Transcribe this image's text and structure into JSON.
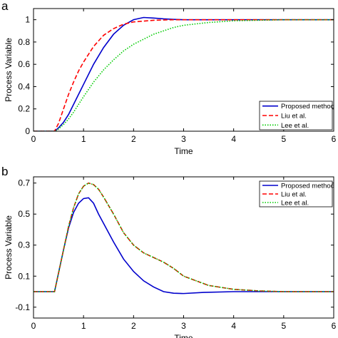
{
  "chart_data": [
    {
      "panel_label": "a",
      "type": "line",
      "xlabel": "Time",
      "ylabel": "Process Variable",
      "xlim": [
        0,
        6
      ],
      "ylim": [
        0,
        1.1
      ],
      "xticks": [
        0,
        1,
        2,
        3,
        4,
        5,
        6
      ],
      "yticks": [
        0,
        0.2,
        0.4,
        0.6,
        0.8,
        1
      ],
      "x_tick_labels": [
        "0",
        "1",
        "2",
        "3",
        "4",
        "5",
        "6"
      ],
      "y_tick_labels": [
        "0",
        "0.2",
        "0.4",
        "0.6",
        "0.8",
        "1"
      ],
      "grid": false,
      "legend_position": "bottom-right",
      "series": [
        {
          "name": "Proposed method",
          "color": "#0000cc",
          "style": "solid",
          "x": [
            0,
            0.42,
            0.5,
            0.6,
            0.7,
            0.8,
            0.9,
            1.0,
            1.2,
            1.4,
            1.6,
            1.8,
            2.0,
            2.2,
            2.4,
            2.6,
            2.8,
            3.0,
            3.5,
            4.0,
            5.0,
            6.0
          ],
          "y": [
            0,
            0,
            0.03,
            0.08,
            0.15,
            0.24,
            0.33,
            0.42,
            0.6,
            0.75,
            0.87,
            0.95,
            1.0,
            1.02,
            1.015,
            1.008,
            1.003,
            1.0,
            1.0,
            1.0,
            1.0,
            1.0
          ]
        },
        {
          "name": "Liu et al.",
          "color": "#ff0000",
          "style": "dashed",
          "x": [
            0,
            0.42,
            0.5,
            0.6,
            0.7,
            0.8,
            0.9,
            1.0,
            1.2,
            1.4,
            1.6,
            1.8,
            2.0,
            2.4,
            2.8,
            3.0,
            4.0,
            5.0,
            6.0
          ],
          "y": [
            0,
            0,
            0.07,
            0.2,
            0.33,
            0.44,
            0.54,
            0.62,
            0.76,
            0.86,
            0.92,
            0.96,
            0.98,
            0.995,
            1.0,
            1.0,
            1.0,
            1.0,
            1.0
          ]
        },
        {
          "name": "Lee et al.",
          "color": "#00cc00",
          "style": "dotted",
          "x": [
            0,
            0.45,
            0.5,
            0.6,
            0.7,
            0.8,
            0.9,
            1.0,
            1.2,
            1.4,
            1.6,
            1.8,
            2.0,
            2.4,
            2.8,
            3.0,
            3.5,
            4.0,
            5.0,
            6.0
          ],
          "y": [
            0,
            0,
            0.02,
            0.06,
            0.11,
            0.17,
            0.24,
            0.31,
            0.44,
            0.55,
            0.64,
            0.72,
            0.78,
            0.87,
            0.93,
            0.95,
            0.975,
            0.99,
            1.0,
            1.0
          ]
        }
      ]
    },
    {
      "panel_label": "b",
      "type": "line",
      "xlabel": "Time",
      "ylabel": "Process Variable",
      "xlim": [
        0,
        6
      ],
      "ylim": [
        -0.17,
        0.74
      ],
      "xticks": [
        0,
        1,
        2,
        3,
        4,
        5,
        6
      ],
      "yticks": [
        -0.1,
        0.1,
        0.3,
        0.5,
        0.7
      ],
      "x_tick_labels": [
        "0",
        "1",
        "2",
        "3",
        "4",
        "5",
        "6"
      ],
      "y_tick_labels": [
        "-0.1",
        "0.1",
        "0.3",
        "0.5",
        "0.7"
      ],
      "grid": false,
      "legend_position": "top-right",
      "series": [
        {
          "name": "Proposed method",
          "color": "#0000cc",
          "style": "solid",
          "x": [
            0,
            0.42,
            0.5,
            0.6,
            0.7,
            0.8,
            0.9,
            1.0,
            1.1,
            1.2,
            1.3,
            1.4,
            1.6,
            1.8,
            2.0,
            2.2,
            2.4,
            2.6,
            2.8,
            3.0,
            3.4,
            4.0,
            5.0,
            6.0
          ],
          "y": [
            0,
            0,
            0.12,
            0.27,
            0.41,
            0.51,
            0.57,
            0.6,
            0.605,
            0.57,
            0.5,
            0.44,
            0.32,
            0.21,
            0.13,
            0.07,
            0.03,
            0.0,
            -0.01,
            -0.012,
            -0.005,
            0.0,
            0.0,
            0.0
          ]
        },
        {
          "name": "Liu et al.",
          "color": "#ff0000",
          "style": "dashed",
          "x": [
            0,
            0.42,
            0.5,
            0.6,
            0.7,
            0.8,
            0.9,
            1.0,
            1.1,
            1.2,
            1.3,
            1.4,
            1.6,
            1.8,
            2.0,
            2.2,
            2.4,
            2.6,
            2.8,
            3.0,
            3.5,
            4.0,
            4.5,
            5.0,
            6.0
          ],
          "y": [
            0,
            0,
            0.12,
            0.27,
            0.42,
            0.54,
            0.63,
            0.68,
            0.7,
            0.69,
            0.66,
            0.61,
            0.5,
            0.38,
            0.3,
            0.25,
            0.22,
            0.19,
            0.15,
            0.1,
            0.04,
            0.015,
            0.005,
            0.0,
            0.0
          ]
        },
        {
          "name": "Lee et al.",
          "color": "#00cc00",
          "style": "dotted",
          "x": [
            0,
            0.42,
            0.5,
            0.6,
            0.7,
            0.8,
            0.9,
            1.0,
            1.1,
            1.2,
            1.3,
            1.4,
            1.6,
            1.8,
            2.0,
            2.2,
            2.4,
            2.6,
            2.8,
            3.0,
            3.5,
            4.0,
            4.5,
            5.0,
            6.0
          ],
          "y": [
            0,
            0,
            0.12,
            0.27,
            0.42,
            0.54,
            0.63,
            0.68,
            0.7,
            0.69,
            0.66,
            0.61,
            0.5,
            0.38,
            0.3,
            0.25,
            0.22,
            0.19,
            0.15,
            0.1,
            0.04,
            0.015,
            0.005,
            0.0,
            0.0
          ]
        }
      ]
    }
  ]
}
